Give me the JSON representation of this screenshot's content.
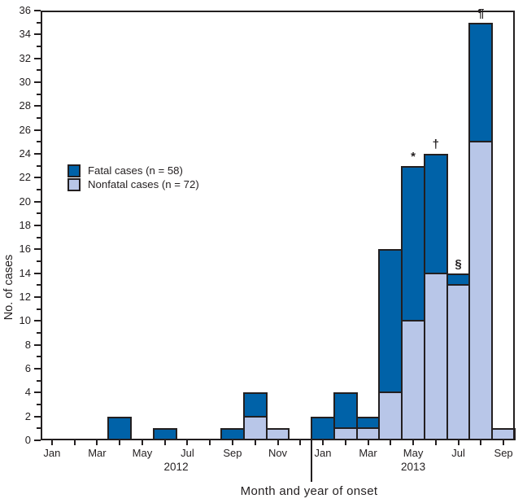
{
  "figure": {
    "background": "#ffffff",
    "frame_color": "#231f20",
    "text_color": "#231f20"
  },
  "chart_data": {
    "type": "bar",
    "stacked": true,
    "title": "",
    "ylabel": "No. of cases",
    "xlabel": "Month and year of onset",
    "ylim": [
      0,
      36
    ],
    "y_major_tick_step": 2,
    "y_minor_tick_step": 1,
    "x_label_every": 2,
    "grid": false,
    "legend_position": "upper-left-inside",
    "categories": [
      "Jan",
      "Feb",
      "Mar",
      "Apr",
      "May",
      "Jun",
      "Jul",
      "Aug",
      "Sep",
      "Oct",
      "Nov",
      "Dec",
      "Jan",
      "Feb",
      "Mar",
      "Apr",
      "May",
      "Jun",
      "Jul",
      "Aug",
      "Sep"
    ],
    "year_groups": [
      {
        "label": "2012",
        "start": 0,
        "count": 12
      },
      {
        "label": "2013",
        "start": 12,
        "count": 9
      }
    ],
    "series": [
      {
        "name": "Fatal cases (n = 58)",
        "color": "#0062a8",
        "stack_position": "top",
        "values": [
          0,
          0,
          0,
          2,
          0,
          1,
          0,
          0,
          1,
          2,
          0,
          0,
          2,
          3,
          1,
          12,
          13,
          10,
          1,
          10,
          0
        ]
      },
      {
        "name": "Nonfatal cases (n = 72)",
        "color": "#b8c6e8",
        "stack_position": "bottom",
        "values": [
          0,
          0,
          0,
          0,
          0,
          0,
          0,
          0,
          0,
          2,
          1,
          0,
          0,
          1,
          1,
          4,
          10,
          14,
          13,
          25,
          1
        ]
      }
    ],
    "annotations": [
      {
        "symbol": "*",
        "category_index": 16
      },
      {
        "symbol": "†",
        "category_index": 17
      },
      {
        "symbol": "§",
        "category_index": 18
      },
      {
        "symbol": "¶",
        "category_index": 19
      }
    ]
  }
}
